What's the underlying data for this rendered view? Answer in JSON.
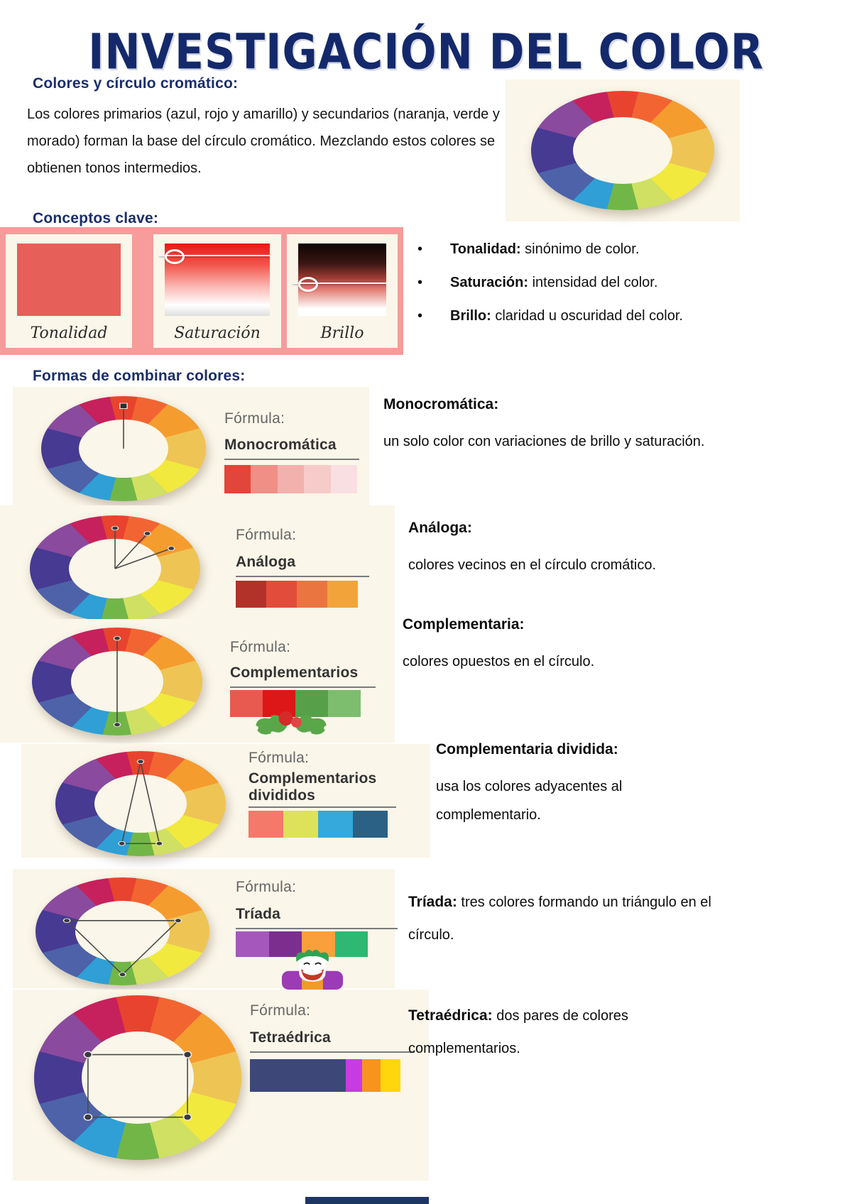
{
  "page": {
    "title": "INVESTIGACIÓN DEL COLOR"
  },
  "colors": {
    "title_navy": "#14296b",
    "heading_navy": "#1b2e6b",
    "panel_cream": "#faf6e9",
    "panel_pink": "#f79b9b",
    "footer_bar": "#1d3763",
    "tonalidad_swatch": "#e66059",
    "wheel": [
      "#e8432e",
      "#f26532",
      "#f59c2f",
      "#eec455",
      "#f2e93e",
      "#cfe063",
      "#72b648",
      "#2f9fd6",
      "#4d62a8",
      "#473a92",
      "#8a4a9e",
      "#c6215c"
    ]
  },
  "intro": {
    "heading": "Colores y círculo cromático:",
    "body": "Los colores primarios (azul, rojo y amarillo) y secundarios (naranja, verde y morado) forman la base del círculo cromático. Mezclando estos colores se obtienen tonos intermedios."
  },
  "concepts": {
    "heading": "Conceptos clave:",
    "cards": [
      {
        "label": "Tonalidad"
      },
      {
        "label": "Saturación"
      },
      {
        "label": "Brillo"
      }
    ],
    "bullets": [
      {
        "term": "Tonalidad:",
        "def": " sinónimo de color."
      },
      {
        "term": "Saturación:",
        "def": " intensidad del color."
      },
      {
        "term": "Brillo:",
        "def": " claridad u oscuridad del color."
      }
    ]
  },
  "combos": {
    "heading": "Formas de combinar colores:",
    "formula_label": "Fórmula:",
    "rows": [
      {
        "name": "Monocromática",
        "desc_term": "Monocromática:",
        "desc_text": "un solo color con variaciones de brillo y saturación.",
        "swatches": [
          {
            "color": "#e2463a",
            "flex": 1
          },
          {
            "color": "#ef8f86",
            "flex": 1
          },
          {
            "color": "#f3b1ad",
            "flex": 1
          },
          {
            "color": "#f7cbca",
            "flex": 1
          },
          {
            "color": "#fadfe2",
            "flex": 1
          }
        ]
      },
      {
        "name": "Análoga",
        "desc_term": "Análoga:",
        "desc_text": "colores vecinos en el círculo cromático.",
        "swatches": [
          {
            "color": "#b23229",
            "flex": 1
          },
          {
            "color": "#e24c3a",
            "flex": 1
          },
          {
            "color": "#eb7540",
            "flex": 1
          },
          {
            "color": "#f2a43a",
            "flex": 1
          }
        ]
      },
      {
        "name": "Complementarios",
        "desc_term": "Complementaria:",
        "desc_text": "colores opuestos en el círculo.",
        "swatches": [
          {
            "color": "#e85a50",
            "flex": 1
          },
          {
            "color": "#dd1717",
            "flex": 1
          },
          {
            "color": "#57a049",
            "flex": 1
          },
          {
            "color": "#7dbe6e",
            "flex": 1
          }
        ]
      },
      {
        "name": "Complementarios divididos",
        "desc_term": "Complementaria dividida:",
        "desc_text": "usa los colores adyacentes al complementario.",
        "swatches": [
          {
            "color": "#f4796b",
            "flex": 1
          },
          {
            "color": "#dde25a",
            "flex": 1
          },
          {
            "color": "#35a8dc",
            "flex": 1
          },
          {
            "color": "#2a6184",
            "flex": 1
          }
        ]
      },
      {
        "name": "Tríada",
        "desc_term": "Tríada:",
        "desc_text": " tres colores formando un triángulo en el círculo.",
        "swatches": [
          {
            "color": "#a557bb",
            "flex": 1
          },
          {
            "color": "#7c2e8f",
            "flex": 1
          },
          {
            "color": "#f9a03c",
            "flex": 1
          },
          {
            "color": "#2eb872",
            "flex": 1
          }
        ]
      },
      {
        "name": "Tetraédrica",
        "desc_term": "Tetraédrica:",
        "desc_text": " dos pares de colores complementarios.",
        "swatches": [
          {
            "color": "#3d4878",
            "flex": 4.4
          },
          {
            "color": "#c73be0",
            "flex": 0.75
          },
          {
            "color": "#f8931d",
            "flex": 0.85
          },
          {
            "color": "#ffd60a",
            "flex": 0.9
          }
        ]
      }
    ]
  }
}
